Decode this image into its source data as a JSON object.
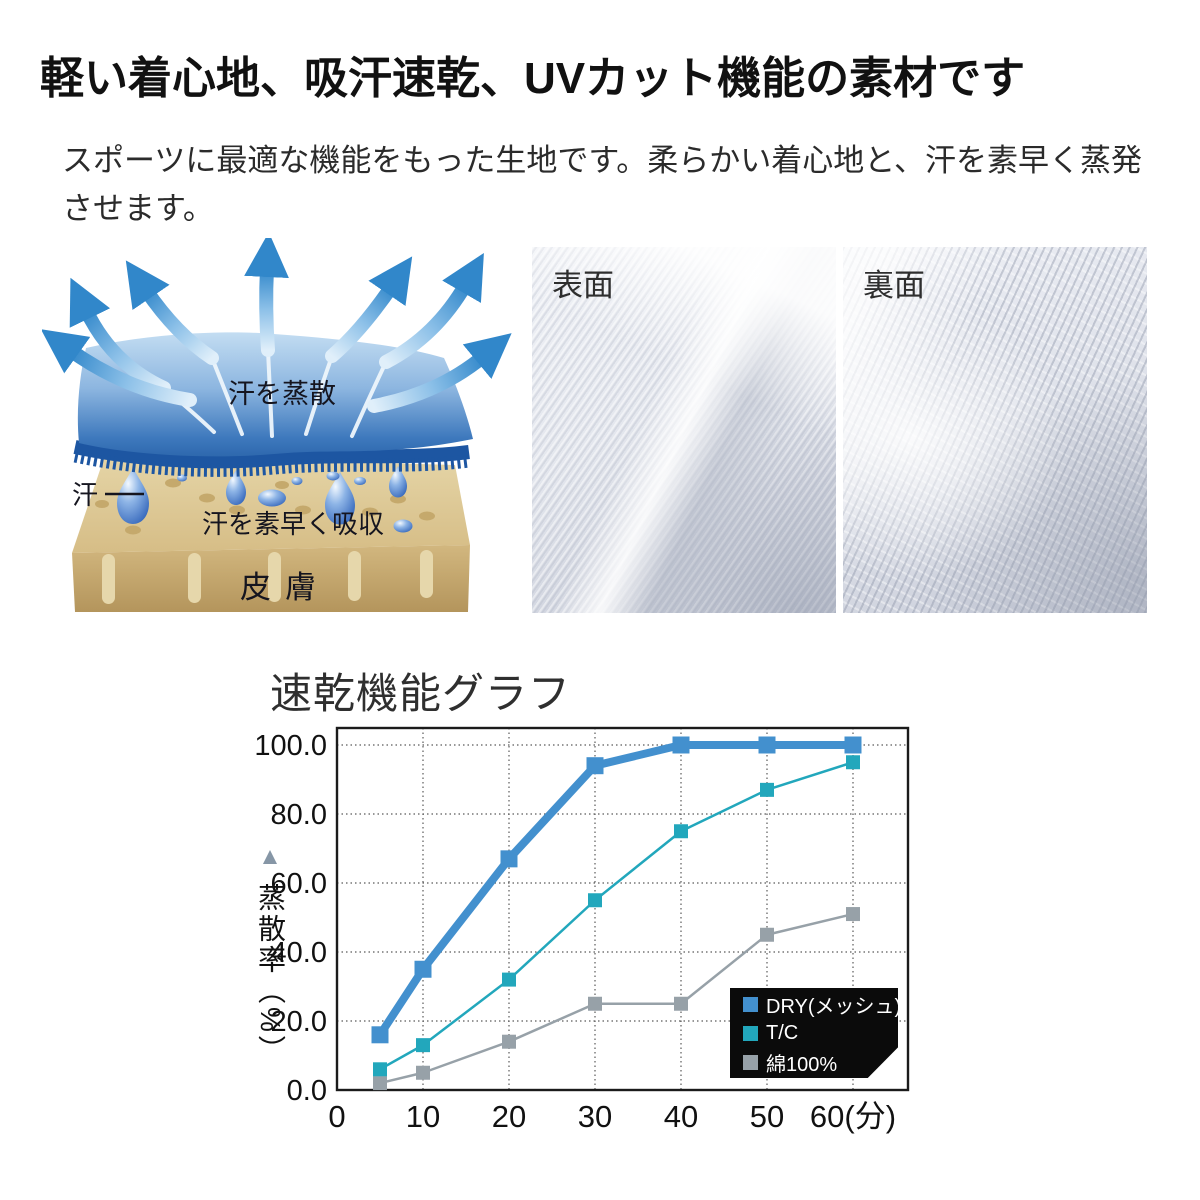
{
  "page": {
    "title": "軽い着心地、吸汗速乾、UVカット機能の素材です",
    "description": "スポーツに最適な機能をもった生地です。柔らかい着心地と、汗を素早く蒸発させます。"
  },
  "diagram": {
    "label_evaporate": "汗を蒸散",
    "label_sweat": "汗",
    "label_absorb": "汗を素早く吸収",
    "label_skin": "皮膚"
  },
  "photos": {
    "front": {
      "label": "表面"
    },
    "back": {
      "label": "裏面"
    }
  },
  "icons": {
    "y_axis_triangle": "▲"
  },
  "chart_data": {
    "type": "line",
    "title": "速乾機能グラフ",
    "ylabel": "蒸散率（%）",
    "xlabel": "",
    "x": [
      5,
      10,
      20,
      30,
      40,
      50,
      60
    ],
    "xticks": [
      0,
      10,
      20,
      30,
      40,
      50,
      60
    ],
    "xtick_labels": [
      "0",
      "10",
      "20",
      "30",
      "40",
      "50",
      "60(分)"
    ],
    "yticks": [
      0,
      20,
      40,
      60,
      80,
      100
    ],
    "ytick_labels": [
      "0.0",
      "20.0",
      "40.0",
      "60.0",
      "80.0",
      "100.0"
    ],
    "ylim": [
      0,
      105
    ],
    "grid": "dotted-both",
    "legend_position": "lower-right-black-box",
    "series": [
      {
        "name": "DRY(メッシュ)",
        "color": "#4390ce",
        "width": 8,
        "marker": 17,
        "values": [
          16,
          35,
          67,
          94,
          100,
          100,
          100
        ]
      },
      {
        "name": "T/C",
        "color": "#22a7bc",
        "width": 2.5,
        "marker": 14,
        "values": [
          6,
          13,
          32,
          55,
          75,
          87,
          95
        ]
      },
      {
        "name": "綿100%",
        "color": "#97a1a8",
        "width": 2.5,
        "marker": 14,
        "values": [
          2,
          5,
          14,
          25,
          25,
          45,
          51
        ]
      }
    ]
  }
}
